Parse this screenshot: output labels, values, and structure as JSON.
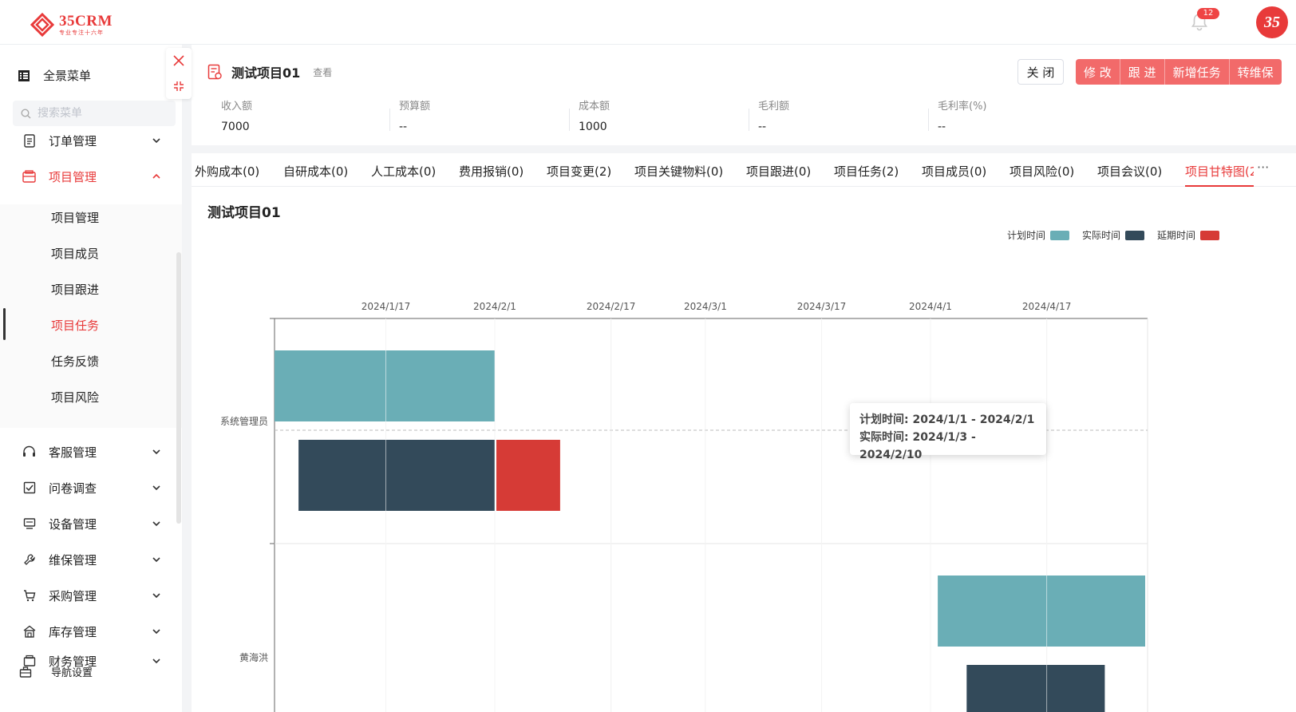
{
  "app": {
    "brand": "35CRM",
    "slogan": "专业专注十六年",
    "notification_count": "12",
    "avatar_text": "35"
  },
  "sidebar": {
    "full_menu_label": "全景菜单",
    "search_placeholder": "搜索菜单",
    "menus": [
      {
        "label": "订单管理",
        "icon": "order-icon"
      },
      {
        "label": "项目管理",
        "icon": "project-icon",
        "expanded": true
      },
      {
        "label": "客服管理",
        "icon": "headset-icon"
      },
      {
        "label": "问卷调查",
        "icon": "survey-icon"
      },
      {
        "label": "设备管理",
        "icon": "device-icon"
      },
      {
        "label": "维保管理",
        "icon": "wrench-icon"
      },
      {
        "label": "采购管理",
        "icon": "cart-icon"
      },
      {
        "label": "库存管理",
        "icon": "warehouse-icon"
      },
      {
        "label": "财务管理",
        "icon": "finance-icon"
      }
    ],
    "project_submenu": [
      "项目管理",
      "项目成员",
      "项目跟进",
      "项目任务",
      "任务反馈",
      "项目风险"
    ],
    "active_submenu": "项目任务",
    "nav_setting_label": "导航设置"
  },
  "detail": {
    "title": "测试项目01",
    "view_label": "查看",
    "close_label": "关 闭",
    "actions": [
      "修 改",
      "跟 进",
      "新增任务",
      "转维保"
    ],
    "stats": [
      {
        "label": "收入额",
        "value": "7000"
      },
      {
        "label": "预算额",
        "value": "--"
      },
      {
        "label": "成本额",
        "value": "1000"
      },
      {
        "label": "毛利额",
        "value": "--"
      },
      {
        "label": "毛利率(%)",
        "value": "--"
      }
    ],
    "tabs": [
      "外购成本(0)",
      "自研成本(0)",
      "人工成本(0)",
      "费用报销(0)",
      "项目变更(2)",
      "项目关键物料(0)",
      "项目跟进(0)",
      "项目任务(2)",
      "项目成员(0)",
      "项目风险(0)",
      "项目会议(0)",
      "项目甘特图(2"
    ],
    "active_tab": "项目甘特图(2",
    "more_label": "···"
  },
  "chart_data": {
    "type": "gantt",
    "title": "测试项目01",
    "legend": [
      {
        "name": "计划时间",
        "color": "#6aaeb6"
      },
      {
        "name": "实际时间",
        "color": "#334a5a"
      },
      {
        "name": "延期时间",
        "color": "#d63b36"
      }
    ],
    "legend_position": "top-right",
    "x_ticks": [
      "2024/1/17",
      "2024/2/1",
      "2024/2/17",
      "2024/3/1",
      "2024/3/17",
      "2024/4/1",
      "2024/4/17"
    ],
    "categories": [
      "系统管理员",
      "黄海洪"
    ],
    "tasks": [
      {
        "category": "系统管理员",
        "plan": [
          "2024/1/1",
          "2024/2/1"
        ],
        "actual": [
          "2024/1/3",
          "2024/2/1"
        ],
        "delay": [
          "2024/2/1",
          "2024/2/10"
        ]
      },
      {
        "category": "黄海洪",
        "plan": [
          "2024/4/2",
          "2024/5/1"
        ],
        "actual": [
          "2024/4/4",
          "2024/4/25"
        ],
        "delay": null
      }
    ],
    "tooltip": {
      "plan_line": "计划时间: 2024/1/1 - 2024/2/1",
      "actual_line": "实际时间: 2024/1/3 - 2024/2/10"
    }
  }
}
